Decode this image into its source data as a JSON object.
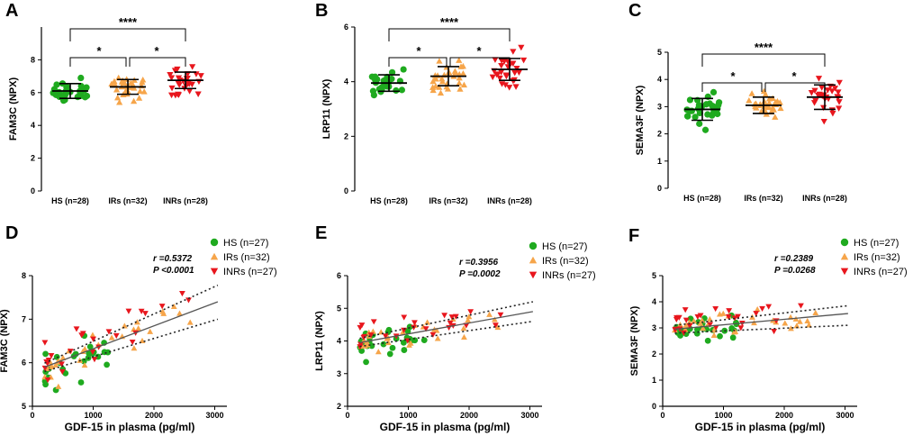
{
  "chart_data": [
    {
      "panel": "A",
      "type": "scatter",
      "ylabel": "FAM3C (NPX)",
      "ylim": [
        0,
        10
      ],
      "yticks": [
        0,
        2,
        4,
        6,
        8
      ],
      "categories": [
        "HS (n=28)",
        "IRs (n=32)",
        "INRs (n=28)"
      ],
      "groups": [
        {
          "mean": 6.1,
          "sd": 0.45,
          "n": 28,
          "color": "#1faa1f",
          "marker": "circle"
        },
        {
          "mean": 6.35,
          "sd": 0.45,
          "n": 32,
          "color": "#f6a54a",
          "marker": "triangle-up"
        },
        {
          "mean": 6.75,
          "sd": 0.5,
          "n": 28,
          "color": "#e8161d",
          "marker": "triangle-down"
        }
      ],
      "significance": [
        "*",
        "*",
        "****"
      ]
    },
    {
      "panel": "B",
      "type": "scatter",
      "ylabel": "LRP11 (NPX)",
      "ylim": [
        0,
        6
      ],
      "yticks": [
        0,
        2,
        4,
        6
      ],
      "categories": [
        "HS (n=28)",
        "IRs (n=32)",
        "INRs (n=28)"
      ],
      "groups": [
        {
          "mean": 3.95,
          "sd": 0.3,
          "n": 28,
          "color": "#1faa1f",
          "marker": "circle"
        },
        {
          "mean": 4.2,
          "sd": 0.35,
          "n": 32,
          "color": "#f6a54a",
          "marker": "triangle-up"
        },
        {
          "mean": 4.45,
          "sd": 0.4,
          "n": 28,
          "color": "#e8161d",
          "marker": "triangle-down"
        }
      ],
      "significance": [
        "*",
        "*",
        "****"
      ]
    },
    {
      "panel": "C",
      "type": "scatter",
      "ylabel": "SEMA3F (NPX)",
      "ylim": [
        0,
        5
      ],
      "yticks": [
        0,
        1,
        2,
        3,
        4,
        5
      ],
      "categories": [
        "HS (n=28)",
        "IRs (n=32)",
        "INRs (n=28)"
      ],
      "groups": [
        {
          "mean": 2.9,
          "sd": 0.4,
          "n": 28,
          "color": "#1faa1f",
          "marker": "circle"
        },
        {
          "mean": 3.05,
          "sd": 0.3,
          "n": 32,
          "color": "#f6a54a",
          "marker": "triangle-up"
        },
        {
          "mean": 3.35,
          "sd": 0.45,
          "n": 28,
          "color": "#e8161d",
          "marker": "triangle-down"
        }
      ],
      "significance": [
        "*",
        "*",
        "****"
      ]
    },
    {
      "panel": "D",
      "type": "scatter",
      "xlabel": "GDF-15 in plasma (pg/ml)",
      "ylabel": "FAM3C (NPX)",
      "xlim": [
        0,
        3200
      ],
      "ylim": [
        5,
        8
      ],
      "xticks": [
        0,
        1000,
        2000,
        3000
      ],
      "yticks": [
        5,
        6,
        7,
        8
      ],
      "r": "r =0.5372",
      "p": "P <0.0001",
      "fit": {
        "x0": 200,
        "y0": 5.9,
        "x1": 3050,
        "y1": 7.4
      },
      "ci": {
        "upper": [
          5.99,
          7.78
        ],
        "lower": [
          5.8,
          7.0
        ]
      },
      "y_center": 6.4,
      "y_spread": 0.45,
      "series": [
        {
          "name": "HS (n=27)",
          "n": 27,
          "color": "#1faa1f",
          "marker": "circle"
        },
        {
          "name": "IRs (n=32)",
          "n": 32,
          "color": "#f6a54a",
          "marker": "triangle-up"
        },
        {
          "name": "INRs (n=27)",
          "n": 27,
          "color": "#e8161d",
          "marker": "triangle-down"
        }
      ]
    },
    {
      "panel": "E",
      "type": "scatter",
      "xlabel": "GDF-15 in plasma (pg/ml)",
      "ylabel": "LRP11 (NPX)",
      "xlim": [
        0,
        3200
      ],
      "ylim": [
        2,
        6
      ],
      "xticks": [
        0,
        1000,
        2000,
        3000
      ],
      "yticks": [
        2,
        3,
        4,
        5,
        6
      ],
      "r": "r =0.3956",
      "p": "P =0.0002",
      "fit": {
        "x0": 200,
        "y0": 3.95,
        "x1": 3050,
        "y1": 4.9
      },
      "ci": {
        "upper": [
          4.08,
          5.2
        ],
        "lower": [
          3.83,
          4.6
        ]
      },
      "y_center": 4.2,
      "y_spread": 0.4,
      "series": [
        {
          "name": "HS (n=27)",
          "n": 27,
          "color": "#1faa1f",
          "marker": "circle"
        },
        {
          "name": "IRs (n=32)",
          "n": 32,
          "color": "#f6a54a",
          "marker": "triangle-up"
        },
        {
          "name": "INRs (n=27)",
          "n": 27,
          "color": "#e8161d",
          "marker": "triangle-down"
        }
      ]
    },
    {
      "panel": "F",
      "type": "scatter",
      "xlabel": "GDF-15 in plasma (pg/ml)",
      "ylabel": "SEMA3F (NPX)",
      "xlim": [
        0,
        3200
      ],
      "ylim": [
        0,
        5
      ],
      "xticks": [
        0,
        1000,
        2000,
        3000
      ],
      "yticks": [
        0,
        1,
        2,
        3,
        4,
        5
      ],
      "r": "r =0.2389",
      "p": "P =0.0268",
      "fit": {
        "x0": 200,
        "y0": 2.95,
        "x1": 3050,
        "y1": 3.55
      },
      "ci": {
        "upper": [
          3.1,
          3.85
        ],
        "lower": [
          2.8,
          3.1
        ]
      },
      "y_center": 3.0,
      "y_spread": 0.45,
      "series": [
        {
          "name": "HS (n=27)",
          "n": 27,
          "color": "#1faa1f",
          "marker": "circle"
        },
        {
          "name": "IRs (n=32)",
          "n": 32,
          "color": "#f6a54a",
          "marker": "triangle-up"
        },
        {
          "name": "INRs (n=27)",
          "n": 27,
          "color": "#e8161d",
          "marker": "triangle-down"
        }
      ]
    }
  ]
}
